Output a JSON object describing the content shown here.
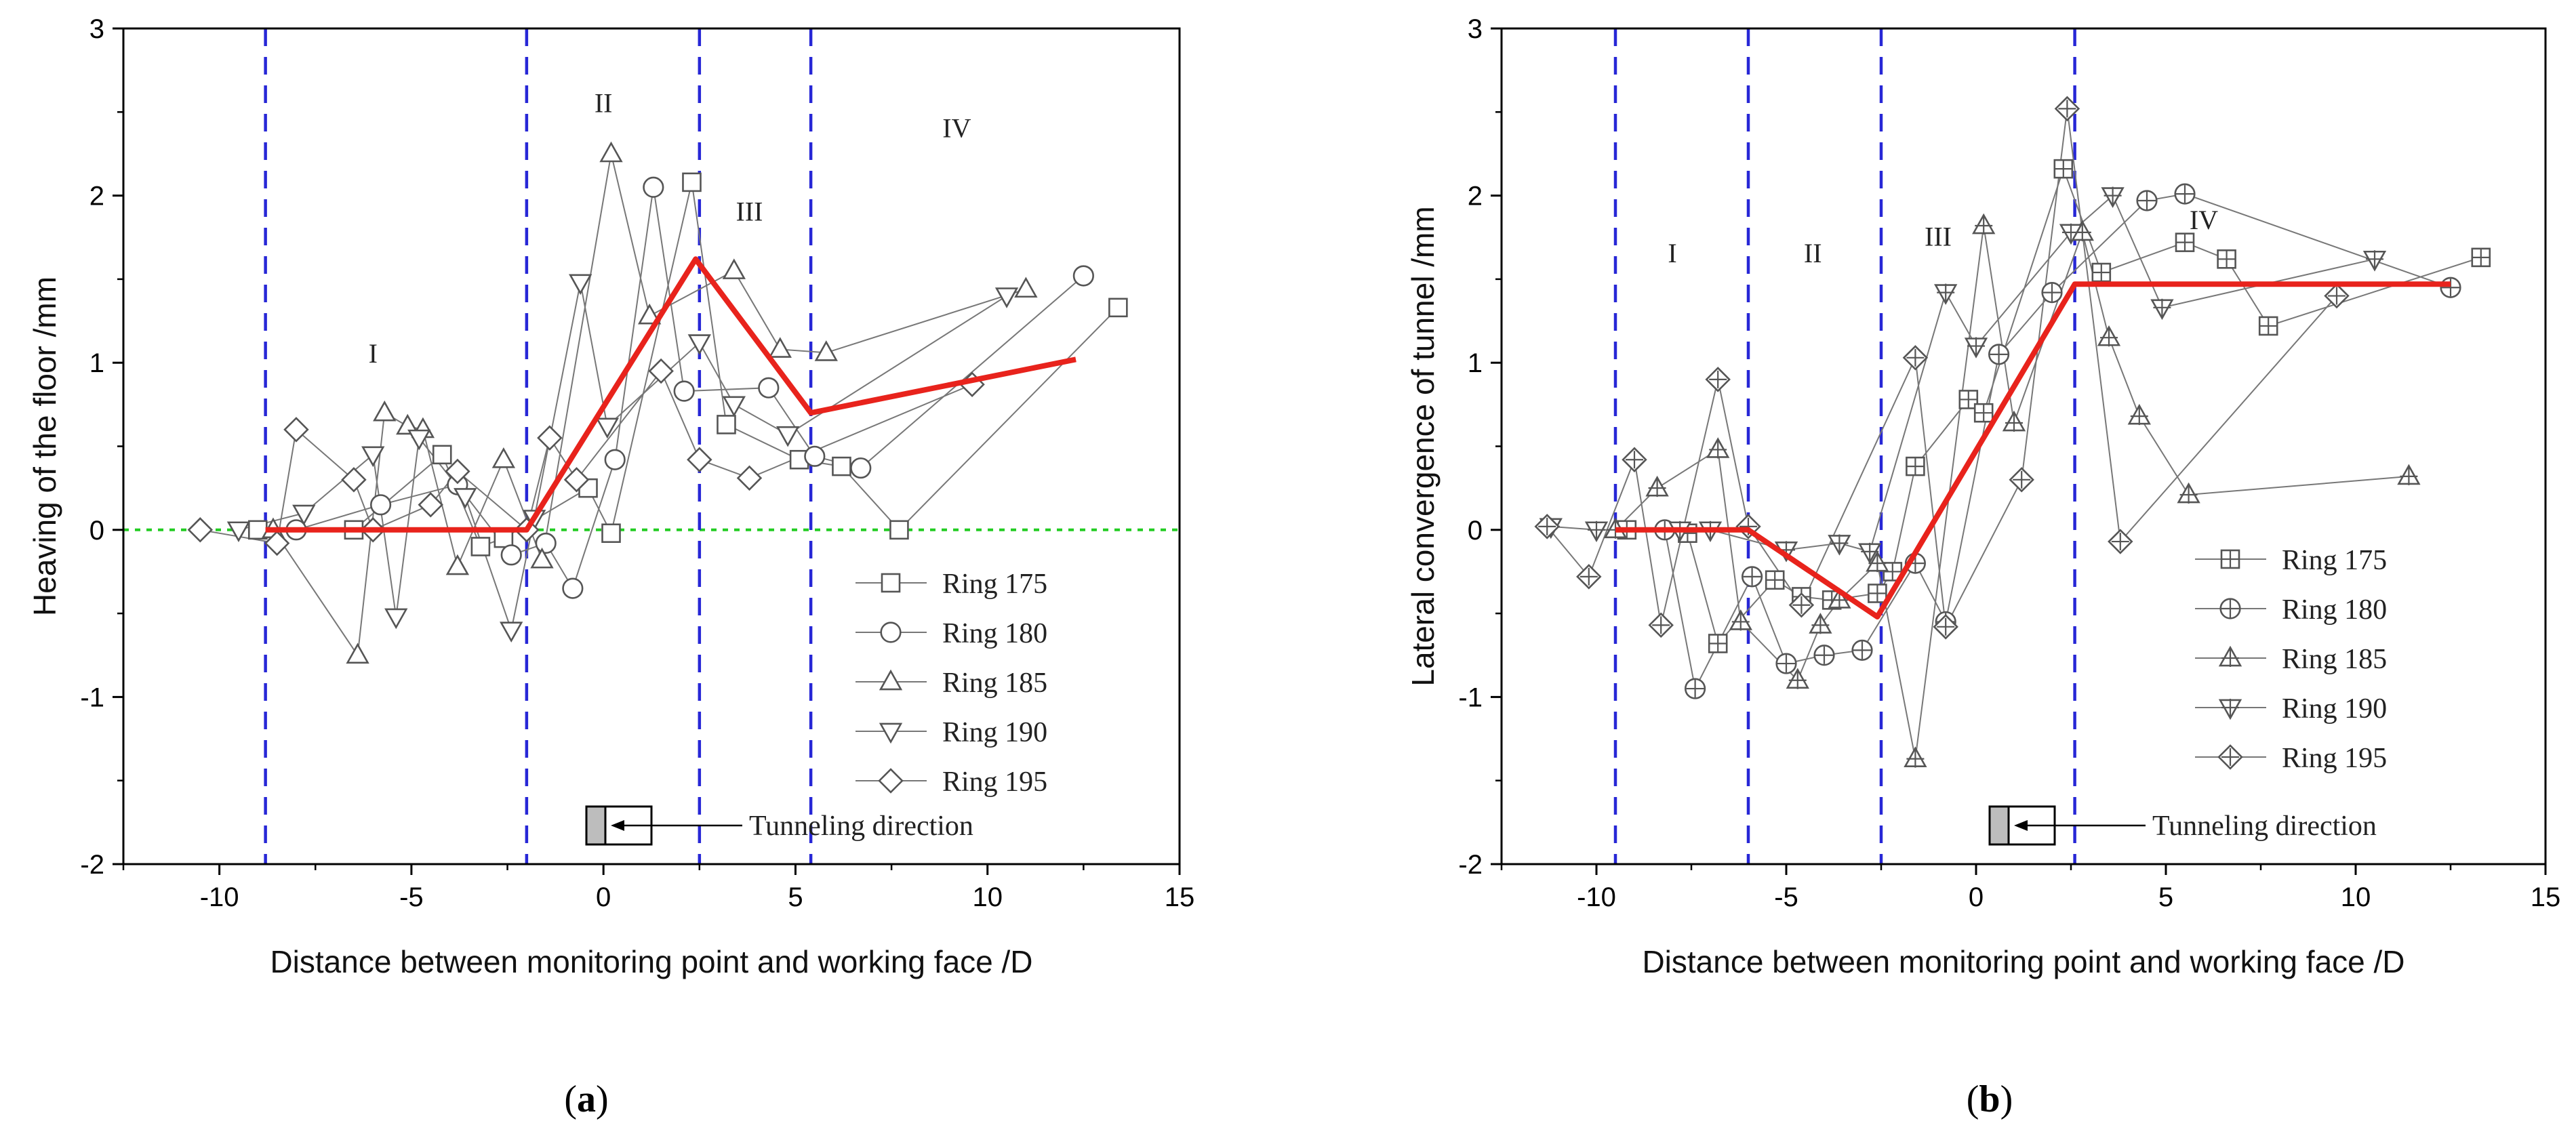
{
  "chart_data": [
    {
      "panel": "(a)",
      "panel_open": "(",
      "panel_letter": "a",
      "panel_close": ")",
      "type": "line",
      "title": "",
      "xlabel": "Distance between monitoring point and working face /D",
      "ylabel": "Heaving of the floor  /mm",
      "xlim": [
        -12.5,
        15
      ],
      "ylim": [
        -2,
        3
      ],
      "xticks": [
        -10,
        -5,
        0,
        5,
        10,
        15
      ],
      "xtick_labels": [
        "-10",
        "-5",
        "0",
        "5",
        "10",
        "15"
      ],
      "yticks": [
        -2,
        -1,
        0,
        1,
        2,
        3
      ],
      "ytick_labels": [
        "-2",
        "-1",
        "0",
        "1",
        "2",
        "3"
      ],
      "zero_line": {
        "y": 0,
        "style": "dotted",
        "color": "#22cc22"
      },
      "stage_boundaries": [
        -8.8,
        -2.0,
        2.5,
        5.4
      ],
      "stage_labels": [
        {
          "text": "I",
          "x": -6.0,
          "y": 1.0
        },
        {
          "text": "II",
          "x": 0.0,
          "y": 2.5
        },
        {
          "text": "III",
          "x": 3.8,
          "y": 1.85
        },
        {
          "text": "IV",
          "x": 9.2,
          "y": 2.35
        }
      ],
      "trend": {
        "name": "trend",
        "color": "#e8231c",
        "x": [
          -8.8,
          -2.0,
          2.4,
          5.4,
          12.3
        ],
        "y": [
          0.0,
          0.0,
          1.62,
          0.7,
          1.02
        ]
      },
      "series": [
        {
          "name": "Ring 175",
          "marker": "square",
          "x": [
            -9.0,
            -6.5,
            -4.2,
            -3.2,
            -2.6,
            -0.4,
            0.2,
            2.3,
            3.2,
            5.1,
            6.2,
            7.7,
            13.4
          ],
          "y": [
            0.0,
            0.0,
            0.45,
            -0.1,
            -0.05,
            0.25,
            -0.02,
            2.08,
            0.63,
            0.42,
            0.38,
            0.0,
            1.33
          ]
        },
        {
          "name": "Ring 180",
          "marker": "circle",
          "x": [
            -8.0,
            -5.8,
            -3.8,
            -2.4,
            -1.5,
            -0.8,
            0.3,
            1.3,
            2.1,
            4.3,
            5.5,
            6.7,
            12.5
          ],
          "y": [
            0.0,
            0.15,
            0.27,
            -0.15,
            -0.08,
            -0.35,
            0.42,
            2.05,
            0.83,
            0.85,
            0.44,
            0.37,
            1.52
          ]
        },
        {
          "name": "Ring 185",
          "marker": "triangle",
          "x": [
            -8.6,
            -6.4,
            -5.7,
            -5.1,
            -4.7,
            -3.8,
            -2.6,
            -1.6,
            0.2,
            1.2,
            3.4,
            4.6,
            5.8,
            11.0
          ],
          "y": [
            0.0,
            -0.75,
            0.7,
            0.62,
            0.6,
            -0.22,
            0.42,
            -0.18,
            2.25,
            1.28,
            1.55,
            1.08,
            1.06,
            1.44
          ]
        },
        {
          "name": "Ring 190",
          "marker": "triangle-down",
          "x": [
            -9.5,
            -7.8,
            -6.0,
            -5.4,
            -4.8,
            -3.6,
            -2.4,
            -1.8,
            -0.6,
            0.1,
            2.5,
            3.4,
            4.8,
            10.5
          ],
          "y": [
            0.0,
            0.1,
            0.45,
            -0.52,
            0.55,
            0.2,
            -0.6,
            0.07,
            1.48,
            0.62,
            1.12,
            0.75,
            0.57,
            1.4
          ]
        },
        {
          "name": "Ring 195",
          "marker": "diamond",
          "x": [
            -10.5,
            -8.5,
            -8.0,
            -6.5,
            -6.0,
            -4.5,
            -3.8,
            -2.0,
            -1.4,
            -0.7,
            1.5,
            2.5,
            3.8,
            9.6
          ],
          "y": [
            0.0,
            -0.08,
            0.6,
            0.3,
            0.0,
            0.15,
            0.35,
            0.0,
            0.55,
            0.3,
            0.95,
            0.42,
            0.31,
            0.87
          ]
        }
      ],
      "legend_position": "bottom-right",
      "annotation": {
        "text": "Tunneling direction"
      }
    },
    {
      "panel": "(b)",
      "panel_open": "(",
      "panel_letter": "b",
      "panel_close": ")",
      "type": "line",
      "title": "",
      "xlabel": "Distance between monitoring point and working face /D",
      "ylabel": "Lateral convergence of tunnel /mm",
      "xlim": [
        -12.5,
        15
      ],
      "ylim": [
        -2,
        3
      ],
      "xticks": [
        -10,
        -5,
        0,
        5,
        10,
        15
      ],
      "xtick_labels": [
        "-10",
        "-5",
        "0",
        "5",
        "10",
        "15"
      ],
      "yticks": [
        -2,
        -1,
        0,
        1,
        2,
        3
      ],
      "ytick_labels": [
        "-2",
        "-1",
        "0",
        "1",
        "2",
        "3"
      ],
      "stage_boundaries": [
        -9.5,
        -6.0,
        -2.5,
        2.6
      ],
      "stage_labels": [
        {
          "text": "I",
          "x": -8.0,
          "y": 1.6
        },
        {
          "text": "II",
          "x": -4.3,
          "y": 1.6
        },
        {
          "text": "III",
          "x": -1.0,
          "y": 1.7
        },
        {
          "text": "IV",
          "x": 6.0,
          "y": 1.8
        }
      ],
      "trend": {
        "name": "trend",
        "color": "#e8231c",
        "x": [
          -9.5,
          -6.0,
          -2.6,
          2.6,
          12.5
        ],
        "y": [
          0.0,
          0.0,
          -0.52,
          1.47,
          1.47
        ]
      },
      "series": [
        {
          "name": "Ring 175",
          "marker": "square-plus",
          "x": [
            -9.2,
            -7.6,
            -6.8,
            -5.3,
            -4.6,
            -3.8,
            -2.6,
            -2.2,
            -1.6,
            -0.2,
            0.2,
            2.3,
            3.3,
            5.5,
            6.6,
            7.7,
            13.3
          ],
          "y": [
            0.0,
            -0.02,
            -0.68,
            -0.3,
            -0.4,
            -0.42,
            -0.38,
            -0.25,
            0.38,
            0.78,
            0.7,
            2.16,
            1.54,
            1.72,
            1.62,
            1.22,
            1.63
          ]
        },
        {
          "name": "Ring 180",
          "marker": "circle-plus",
          "x": [
            -8.2,
            -7.4,
            -5.9,
            -5.0,
            -4.0,
            -3.0,
            -1.6,
            -0.8,
            0.6,
            2.0,
            4.5,
            5.5,
            12.5
          ],
          "y": [
            0.0,
            -0.95,
            -0.28,
            -0.8,
            -0.75,
            -0.72,
            -0.2,
            -0.55,
            1.05,
            1.42,
            1.97,
            2.01,
            1.45
          ]
        },
        {
          "name": "Ring 185",
          "marker": "triangle-plus",
          "x": [
            -9.5,
            -8.4,
            -6.8,
            -6.2,
            -4.7,
            -4.1,
            -3.6,
            -2.6,
            -1.6,
            0.2,
            1.0,
            2.8,
            3.5,
            4.3,
            5.6,
            11.4
          ],
          "y": [
            0.0,
            0.25,
            0.48,
            -0.55,
            -0.9,
            -0.57,
            -0.42,
            -0.2,
            -1.37,
            1.82,
            0.64,
            1.78,
            1.15,
            0.68,
            0.21,
            0.32
          ]
        },
        {
          "name": "Ring 190",
          "marker": "triangle-down-plus",
          "x": [
            -11.2,
            -10.0,
            -7.8,
            -7.0,
            -5.0,
            -3.6,
            -2.8,
            -0.8,
            0.0,
            2.5,
            3.6,
            4.9,
            10.5
          ],
          "y": [
            0.02,
            0.0,
            0.0,
            0.0,
            -0.12,
            -0.08,
            -0.13,
            1.42,
            1.1,
            1.78,
            2.0,
            1.33,
            1.62
          ]
        },
        {
          "name": "Ring 195",
          "marker": "diamond-plus",
          "x": [
            -11.3,
            -10.2,
            -9.0,
            -8.3,
            -6.8,
            -6.0,
            -4.6,
            -1.6,
            -0.8,
            1.2,
            2.4,
            3.8,
            9.5
          ],
          "y": [
            0.02,
            -0.28,
            0.42,
            -0.57,
            0.9,
            0.02,
            -0.45,
            1.03,
            -0.58,
            0.3,
            2.52,
            -0.07,
            1.4
          ]
        }
      ],
      "legend_position": "bottom-right",
      "annotation": {
        "text": "Tunneling direction"
      }
    }
  ]
}
